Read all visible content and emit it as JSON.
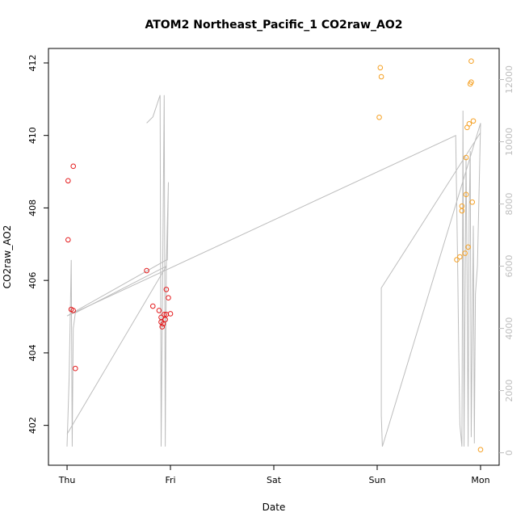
{
  "chart_data": {
    "type": "scatter",
    "title": "ATOM2 Northeast_Pacific_1 CO2raw_AO2",
    "xlabel": "Date",
    "ylabel": "CO2raw_AO2",
    "x_ticks": [
      "Thu",
      "Fri",
      "Sat",
      "Sun",
      "Mon"
    ],
    "x_range_days": [
      -0.18,
      4.18
    ],
    "y_left": {
      "range": [
        400.9,
        412.4
      ],
      "ticks": [
        402,
        404,
        406,
        408,
        410,
        412
      ]
    },
    "y_right": {
      "range": [
        -400,
        13000
      ],
      "ticks": [
        0,
        2000,
        4000,
        6000,
        8000,
        10000,
        12000
      ],
      "color": "#bdbdbd"
    },
    "grid": false,
    "colors": {
      "red_series": "#e41a1c",
      "orange_series": "#f5a023",
      "line_series": "#bdbdbd"
    },
    "series": [
      {
        "marker": "circle-open",
        "color": "#e41a1c",
        "points": [
          {
            "x": 0.01,
            "y": 408.75
          },
          {
            "x": 0.01,
            "y": 407.12
          },
          {
            "x": 0.04,
            "y": 405.2
          },
          {
            "x": 0.06,
            "y": 409.15
          },
          {
            "x": 0.06,
            "y": 405.17
          },
          {
            "x": 0.08,
            "y": 403.57
          },
          {
            "x": 0.77,
            "y": 406.27
          },
          {
            "x": 0.83,
            "y": 405.29
          },
          {
            "x": 0.89,
            "y": 405.17
          },
          {
            "x": 0.91,
            "y": 404.98
          },
          {
            "x": 0.91,
            "y": 404.85
          },
          {
            "x": 0.92,
            "y": 404.72
          },
          {
            "x": 0.93,
            "y": 404.8
          },
          {
            "x": 0.94,
            "y": 405.06
          },
          {
            "x": 0.95,
            "y": 404.92
          },
          {
            "x": 0.96,
            "y": 405.06
          },
          {
            "x": 0.96,
            "y": 405.75
          },
          {
            "x": 0.98,
            "y": 405.52
          },
          {
            "x": 1.0,
            "y": 405.08
          }
        ]
      },
      {
        "marker": "circle-open",
        "color": "#f5a023",
        "points": [
          {
            "x": 3.02,
            "y": 410.5
          },
          {
            "x": 3.03,
            "y": 411.87
          },
          {
            "x": 3.04,
            "y": 411.62
          },
          {
            "x": 3.77,
            "y": 406.57
          },
          {
            "x": 3.8,
            "y": 406.65
          },
          {
            "x": 3.82,
            "y": 408.05
          },
          {
            "x": 3.82,
            "y": 407.92
          },
          {
            "x": 3.85,
            "y": 406.75
          },
          {
            "x": 3.86,
            "y": 408.37
          },
          {
            "x": 3.86,
            "y": 409.39
          },
          {
            "x": 3.87,
            "y": 410.22
          },
          {
            "x": 3.88,
            "y": 406.92
          },
          {
            "x": 3.89,
            "y": 410.32
          },
          {
            "x": 3.9,
            "y": 411.42
          },
          {
            "x": 3.91,
            "y": 411.47
          },
          {
            "x": 3.91,
            "y": 412.05
          },
          {
            "x": 3.92,
            "y": 408.16
          },
          {
            "x": 3.93,
            "y": 410.4
          },
          {
            "x": 4.0,
            "y": 401.33
          }
        ]
      },
      {
        "type": "line",
        "axis": "right",
        "color": "#bdbdbd",
        "points": [
          {
            "x": 0.0,
            "y": 200
          },
          {
            "x": 0.02,
            "y": 2400
          },
          {
            "x": 0.04,
            "y": 6200
          },
          {
            "x": 0.05,
            "y": 200
          },
          {
            "x": 0.06,
            "y": 4000
          },
          {
            "x": 0.08,
            "y": 4500
          },
          {
            "x": 0.96,
            "y": 6000
          },
          {
            "x": 0.95,
            "y": 200
          },
          {
            "x": 0.94,
            "y": 11500
          },
          {
            "x": 0.92,
            "y": 4000
          },
          {
            "x": 0.91,
            "y": 200
          },
          {
            "x": 0.9,
            "y": 11500
          },
          {
            "x": 0.83,
            "y": 10800
          },
          {
            "x": 0.77,
            "y": 10600
          }
        ]
      },
      {
        "type": "line",
        "axis": "right",
        "color": "#bdbdbd",
        "points": [
          {
            "x": 0.0,
            "y": 600
          },
          {
            "x": 0.96,
            "y": 6000
          },
          {
            "x": 0.98,
            "y": 8700
          },
          {
            "x": 0.97,
            "y": 6200
          },
          {
            "x": 0.96,
            "y": 6200
          },
          {
            "x": 0.0,
            "y": 4400
          },
          {
            "x": 3.76,
            "y": 10200
          },
          {
            "x": 3.78,
            "y": 5700
          },
          {
            "x": 3.79,
            "y": 3000
          },
          {
            "x": 3.8,
            "y": 900
          },
          {
            "x": 3.82,
            "y": 200
          },
          {
            "x": 3.83,
            "y": 11000
          },
          {
            "x": 3.84,
            "y": 200
          },
          {
            "x": 3.86,
            "y": 9500
          },
          {
            "x": 3.87,
            "y": 5800
          },
          {
            "x": 3.88,
            "y": 200
          },
          {
            "x": 3.89,
            "y": 7700
          },
          {
            "x": 3.9,
            "y": 9700
          },
          {
            "x": 3.91,
            "y": 500
          },
          {
            "x": 3.93,
            "y": 7300
          },
          {
            "x": 3.94,
            "y": 300
          },
          {
            "x": 3.95,
            "y": 5100
          },
          {
            "x": 3.97,
            "y": 6000
          },
          {
            "x": 4.0,
            "y": 10600
          },
          {
            "x": 3.05,
            "y": 200
          },
          {
            "x": 3.04,
            "y": 1200
          },
          {
            "x": 3.04,
            "y": 5300
          },
          {
            "x": 4.0,
            "y": 10300
          }
        ]
      }
    ]
  }
}
